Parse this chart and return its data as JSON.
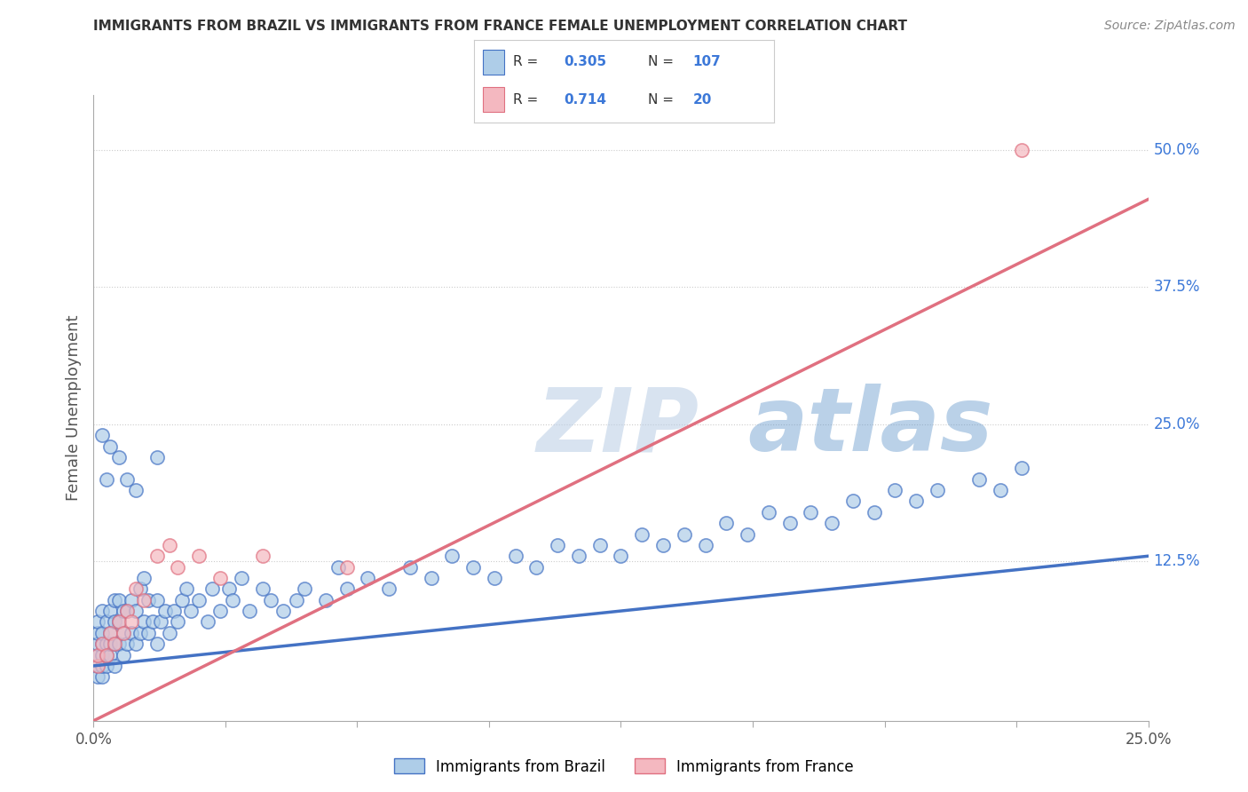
{
  "title": "IMMIGRANTS FROM BRAZIL VS IMMIGRANTS FROM FRANCE FEMALE UNEMPLOYMENT CORRELATION CHART",
  "source": "Source: ZipAtlas.com",
  "ylabel": "Female Unemployment",
  "watermark": "ZIPatlas",
  "brazil_R": 0.305,
  "brazil_N": 107,
  "france_R": 0.714,
  "france_N": 20,
  "x_min": 0.0,
  "x_max": 0.25,
  "y_min": -0.02,
  "y_max": 0.55,
  "right_yticks": [
    0.0,
    0.125,
    0.25,
    0.375,
    0.5
  ],
  "right_yticklabels": [
    "",
    "12.5%",
    "25.0%",
    "37.5%",
    "50.0%"
  ],
  "grid_color": "#cccccc",
  "brazil_color": "#aecde8",
  "france_color": "#f4b8c0",
  "brazil_line_color": "#4472c4",
  "france_line_color": "#e07080",
  "legend_brazil_label": "Immigrants from Brazil",
  "legend_france_label": "Immigrants from France",
  "title_color": "#333333",
  "source_color": "#888888",
  "stat_color": "#3c78d8",
  "brazil_line_style": "solid",
  "france_line_style": "solid",
  "brazil_intercept": 0.03,
  "brazil_slope": 0.4,
  "france_intercept": -0.02,
  "france_slope": 1.9,
  "brazil_scatter_x": [
    0.001,
    0.001,
    0.001,
    0.001,
    0.001,
    0.001,
    0.002,
    0.002,
    0.002,
    0.002,
    0.002,
    0.002,
    0.003,
    0.003,
    0.003,
    0.003,
    0.004,
    0.004,
    0.004,
    0.004,
    0.005,
    0.005,
    0.005,
    0.005,
    0.006,
    0.006,
    0.006,
    0.007,
    0.007,
    0.007,
    0.008,
    0.008,
    0.009,
    0.009,
    0.01,
    0.01,
    0.011,
    0.011,
    0.012,
    0.012,
    0.013,
    0.013,
    0.014,
    0.015,
    0.015,
    0.016,
    0.017,
    0.018,
    0.019,
    0.02,
    0.021,
    0.022,
    0.023,
    0.025,
    0.027,
    0.028,
    0.03,
    0.032,
    0.033,
    0.035,
    0.037,
    0.04,
    0.042,
    0.045,
    0.048,
    0.05,
    0.055,
    0.058,
    0.06,
    0.065,
    0.07,
    0.075,
    0.08,
    0.085,
    0.09,
    0.095,
    0.1,
    0.105,
    0.11,
    0.115,
    0.12,
    0.125,
    0.13,
    0.135,
    0.14,
    0.145,
    0.15,
    0.155,
    0.16,
    0.165,
    0.17,
    0.175,
    0.18,
    0.185,
    0.19,
    0.195,
    0.2,
    0.21,
    0.215,
    0.22,
    0.002,
    0.003,
    0.004,
    0.006,
    0.008,
    0.01,
    0.015
  ],
  "brazil_scatter_y": [
    0.02,
    0.03,
    0.04,
    0.05,
    0.06,
    0.07,
    0.02,
    0.03,
    0.04,
    0.05,
    0.06,
    0.08,
    0.03,
    0.04,
    0.05,
    0.07,
    0.04,
    0.05,
    0.06,
    0.08,
    0.03,
    0.05,
    0.07,
    0.09,
    0.05,
    0.07,
    0.09,
    0.04,
    0.06,
    0.08,
    0.05,
    0.08,
    0.06,
    0.09,
    0.05,
    0.08,
    0.06,
    0.1,
    0.07,
    0.11,
    0.06,
    0.09,
    0.07,
    0.05,
    0.09,
    0.07,
    0.08,
    0.06,
    0.08,
    0.07,
    0.09,
    0.1,
    0.08,
    0.09,
    0.07,
    0.1,
    0.08,
    0.1,
    0.09,
    0.11,
    0.08,
    0.1,
    0.09,
    0.08,
    0.09,
    0.1,
    0.09,
    0.12,
    0.1,
    0.11,
    0.1,
    0.12,
    0.11,
    0.13,
    0.12,
    0.11,
    0.13,
    0.12,
    0.14,
    0.13,
    0.14,
    0.13,
    0.15,
    0.14,
    0.15,
    0.14,
    0.16,
    0.15,
    0.17,
    0.16,
    0.17,
    0.16,
    0.18,
    0.17,
    0.19,
    0.18,
    0.19,
    0.2,
    0.19,
    0.21,
    0.24,
    0.2,
    0.23,
    0.22,
    0.2,
    0.19,
    0.22
  ],
  "france_scatter_x": [
    0.001,
    0.001,
    0.002,
    0.003,
    0.004,
    0.005,
    0.006,
    0.007,
    0.008,
    0.009,
    0.01,
    0.012,
    0.015,
    0.018,
    0.02,
    0.025,
    0.03,
    0.04,
    0.06,
    0.22
  ],
  "france_scatter_y": [
    0.03,
    0.04,
    0.05,
    0.04,
    0.06,
    0.05,
    0.07,
    0.06,
    0.08,
    0.07,
    0.1,
    0.09,
    0.13,
    0.14,
    0.12,
    0.13,
    0.11,
    0.13,
    0.12,
    0.5
  ]
}
